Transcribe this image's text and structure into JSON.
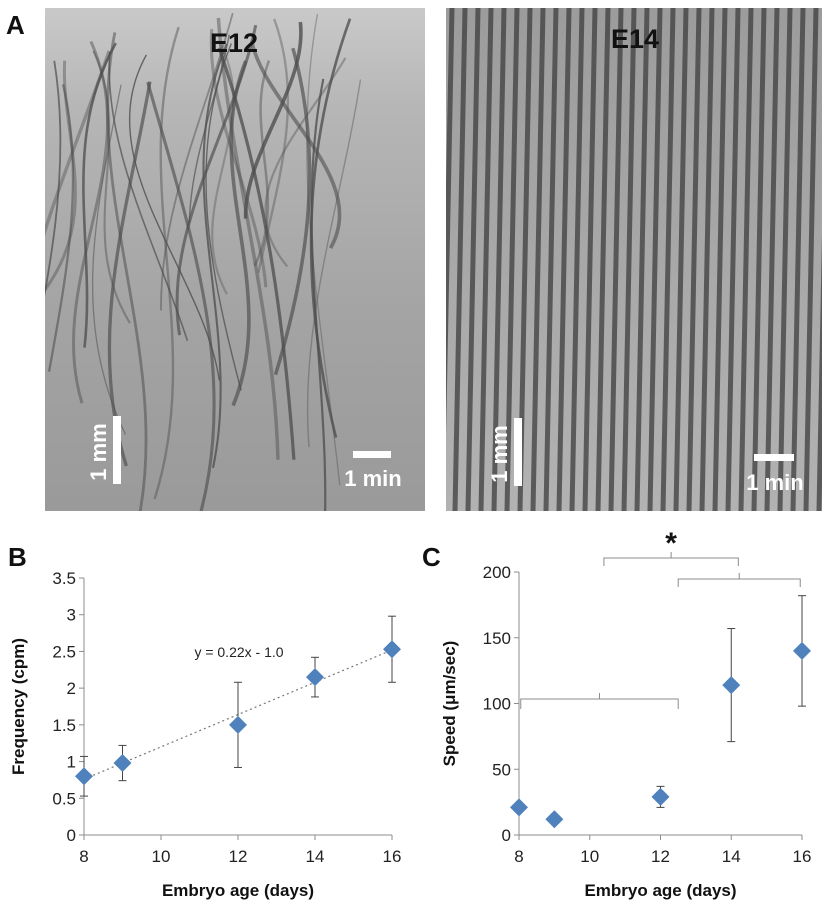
{
  "panels": {
    "A": {
      "letter": "A",
      "images": [
        {
          "label": "E12",
          "scale_vertical": "1 mm",
          "scale_horizontal": "1 min",
          "pattern": "irregular-kymograph"
        },
        {
          "label": "E14",
          "scale_vertical": "1 mm",
          "scale_horizontal": "1 min",
          "pattern": "regular-striped-kymograph"
        }
      ]
    },
    "B": {
      "letter": "B"
    },
    "C": {
      "letter": "C"
    }
  },
  "chart_data": [
    {
      "panel": "B",
      "type": "scatter",
      "xlabel": "Embryo age (days)",
      "ylabel": "Frequency (cpm)",
      "xlim": [
        8,
        16
      ],
      "ylim": [
        0,
        3.5
      ],
      "xticks": [
        8,
        10,
        12,
        14,
        16
      ],
      "yticks": [
        0,
        0.5,
        1,
        1.5,
        2,
        2.5,
        3,
        3.5
      ],
      "grid": false,
      "marker": "diamond",
      "color": "#4f81bd",
      "points": [
        {
          "x": 8,
          "y": 0.8,
          "err": 0.27
        },
        {
          "x": 9,
          "y": 0.98,
          "err": 0.24
        },
        {
          "x": 12,
          "y": 1.5,
          "err": 0.58
        },
        {
          "x": 14,
          "y": 2.15,
          "err": 0.27
        },
        {
          "x": 16,
          "y": 2.53,
          "err": 0.45
        }
      ],
      "trendline": {
        "slope": 0.22,
        "intercept": -1.0,
        "label": "y = 0.22x - 1.0",
        "style": "dotted"
      }
    },
    {
      "panel": "C",
      "type": "scatter",
      "xlabel": "Embryo age (days)",
      "ylabel": "Speed (μm/sec)",
      "xlim": [
        8,
        16
      ],
      "ylim": [
        0,
        200
      ],
      "xticks": [
        8,
        10,
        12,
        14,
        16
      ],
      "yticks": [
        0,
        50,
        100,
        150,
        200
      ],
      "grid": false,
      "marker": "diamond",
      "color": "#4f81bd",
      "points": [
        {
          "x": 8,
          "y": 21,
          "err": 0
        },
        {
          "x": 9,
          "y": 12,
          "err": 0
        },
        {
          "x": 12,
          "y": 29,
          "err": 8
        },
        {
          "x": 14,
          "y": 114,
          "err": 43
        },
        {
          "x": 16,
          "y": 140,
          "err": 42
        }
      ],
      "significance": {
        "label": "*"
      }
    }
  ]
}
